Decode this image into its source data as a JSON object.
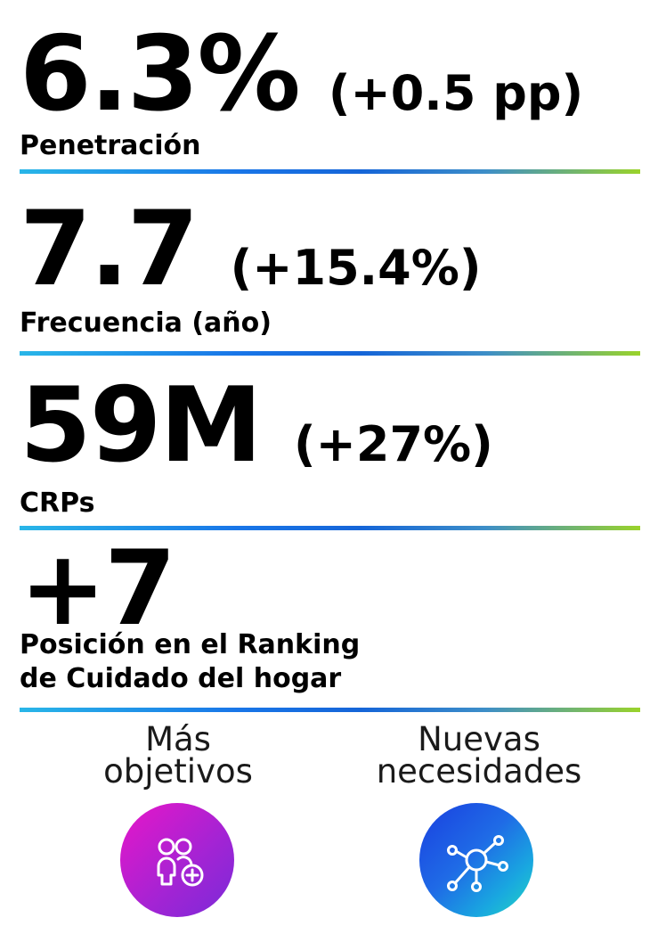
{
  "stats": [
    {
      "value": "6.3%",
      "delta": "(+0.5 pp)",
      "label": "Penetración"
    },
    {
      "value": "7.7",
      "delta": "(+15.4%)",
      "label": "Frecuencia (año)"
    },
    {
      "value": "59M",
      "delta": "(+27%)",
      "label": "CRPs"
    },
    {
      "value": "+7",
      "label_line1": "Posición en el Ranking",
      "label_line2": "de Cuidado del hogar"
    }
  ],
  "columns": [
    {
      "title_line1": "Más",
      "title_line2": "objetivos",
      "icon": "people-add-icon",
      "colors": [
        "#e816c8",
        "#7a2ad8"
      ]
    },
    {
      "title_line1": "Nuevas",
      "title_line2": "necesidades",
      "icon": "network-icon",
      "colors": [
        "#1a3fe0",
        "#22d8c0"
      ]
    }
  ],
  "accent_gradient": [
    "#29b6e8",
    "#1565d8",
    "#9ad32a"
  ]
}
